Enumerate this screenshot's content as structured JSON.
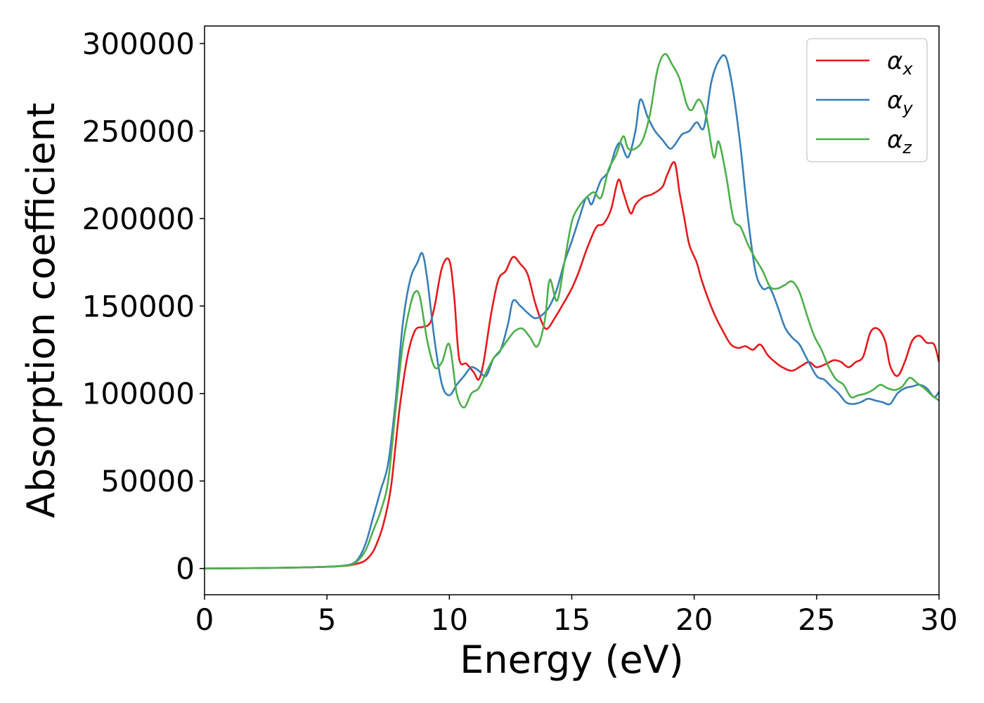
{
  "chart_data": {
    "type": "line",
    "title": "",
    "xlabel": "Energy (eV)",
    "ylabel": "Absorption coefficient",
    "xlim": [
      0,
      30
    ],
    "ylim": [
      -15000,
      310000
    ],
    "x_ticks": [
      0,
      5,
      10,
      15,
      20,
      25,
      30
    ],
    "x_tick_labels": [
      "0",
      "5",
      "10",
      "15",
      "20",
      "25",
      "30"
    ],
    "y_ticks": [
      0,
      50000,
      100000,
      150000,
      200000,
      250000,
      300000
    ],
    "y_tick_labels": [
      "0",
      "50000",
      "100000",
      "150000",
      "200000",
      "250000",
      "300000"
    ],
    "grid": false,
    "legend_position": "top-right",
    "series": [
      {
        "name": "α_x",
        "legend_base": "α",
        "legend_sub": "x",
        "color": "#e41a1c",
        "x": [
          0,
          2,
          4,
          5,
          5.5,
          6,
          6.5,
          6.8,
          7,
          7.3,
          7.6,
          7.8,
          8,
          8.3,
          8.6,
          8.9,
          9.2,
          9.4,
          9.7,
          10,
          10.2,
          10.4,
          10.7,
          11,
          11.2,
          11.4,
          11.7,
          12,
          12.3,
          12.6,
          12.9,
          13.2,
          13.5,
          13.8,
          14,
          14.3,
          14.6,
          15,
          15.3,
          15.6,
          16,
          16.3,
          16.6,
          16.9,
          17.1,
          17.4,
          17.6,
          17.9,
          18.3,
          18.7,
          18.9,
          19.2,
          19.4,
          19.6,
          19.8,
          20.1,
          20.3,
          20.6,
          20.9,
          21.2,
          21.5,
          21.8,
          22.1,
          22.4,
          22.7,
          23,
          23.3,
          23.6,
          24,
          24.4,
          24.7,
          25,
          25.4,
          25.7,
          26,
          26.3,
          26.6,
          26.9,
          27.2,
          27.5,
          27.8,
          28,
          28.3,
          28.6,
          28.9,
          29.2,
          29.5,
          29.8,
          30
        ],
        "y": [
          0,
          200,
          600,
          1000,
          1300,
          2000,
          4000,
          8000,
          13000,
          25000,
          45000,
          70000,
          95000,
          122000,
          136000,
          138000,
          140000,
          150000,
          172000,
          176000,
          155000,
          120000,
          117000,
          112000,
          108000,
          118000,
          145000,
          165000,
          170000,
          178000,
          174000,
          168000,
          152000,
          140000,
          137000,
          143000,
          150000,
          160000,
          170000,
          182000,
          195000,
          197000,
          205000,
          222000,
          215000,
          203000,
          208000,
          212000,
          214000,
          218000,
          225000,
          232000,
          215000,
          200000,
          185000,
          175000,
          165000,
          153000,
          143000,
          135000,
          128000,
          126000,
          127000,
          125000,
          128000,
          122000,
          118000,
          115000,
          113000,
          116000,
          118000,
          115000,
          117000,
          119000,
          118000,
          115000,
          118000,
          121000,
          135000,
          137000,
          130000,
          116000,
          110000,
          118000,
          130000,
          133000,
          129000,
          128000,
          118000
        ]
      },
      {
        "name": "α_y",
        "legend_base": "α",
        "legend_sub": "y",
        "color": "#377eb8",
        "x": [
          0,
          2,
          4,
          5,
          5.5,
          6,
          6.3,
          6.6,
          6.9,
          7.2,
          7.5,
          7.8,
          8.1,
          8.4,
          8.7,
          8.9,
          9.1,
          9.4,
          9.7,
          10,
          10.3,
          10.6,
          10.9,
          11.2,
          11.5,
          11.8,
          12.1,
          12.4,
          12.6,
          12.9,
          13.2,
          13.5,
          13.8,
          14.1,
          14.4,
          14.7,
          15,
          15.3,
          15.6,
          15.8,
          16,
          16.2,
          16.5,
          16.8,
          17,
          17.3,
          17.6,
          17.8,
          18.1,
          18.4,
          18.7,
          19,
          19.2,
          19.5,
          19.8,
          20.1,
          20.4,
          20.7,
          21,
          21.3,
          21.6,
          21.9,
          22.2,
          22.5,
          22.8,
          23.1,
          23.4,
          23.7,
          24,
          24.3,
          24.6,
          25,
          25.3,
          25.6,
          25.9,
          26.2,
          26.5,
          26.8,
          27.1,
          27.4,
          27.7,
          28,
          28.3,
          28.6,
          28.9,
          29.2,
          29.5,
          29.8,
          30
        ],
        "y": [
          0,
          200,
          600,
          1000,
          1400,
          2500,
          6000,
          15000,
          30000,
          45000,
          60000,
          95000,
          140000,
          165000,
          175000,
          180000,
          165000,
          130000,
          105000,
          99000,
          105000,
          110000,
          115000,
          113000,
          110000,
          120000,
          125000,
          140000,
          153000,
          150000,
          146000,
          143000,
          145000,
          150000,
          160000,
          175000,
          187000,
          200000,
          212000,
          208000,
          215000,
          222000,
          227000,
          240000,
          243000,
          235000,
          250000,
          268000,
          258000,
          250000,
          245000,
          240000,
          242000,
          248000,
          250000,
          255000,
          252000,
          278000,
          290000,
          292000,
          272000,
          240000,
          200000,
          170000,
          160000,
          160000,
          150000,
          138000,
          132000,
          128000,
          120000,
          110000,
          108000,
          104000,
          100000,
          95000,
          94000,
          95000,
          97000,
          96000,
          95000,
          94000,
          100000,
          103000,
          104000,
          105000,
          103000,
          98000,
          101000
        ]
      },
      {
        "name": "α_z",
        "legend_base": "α",
        "legend_sub": "z",
        "color": "#4daf4a",
        "x": [
          0,
          2,
          4,
          5,
          5.5,
          6,
          6.3,
          6.6,
          6.9,
          7.2,
          7.5,
          7.8,
          8.1,
          8.4,
          8.6,
          8.8,
          9.1,
          9.4,
          9.7,
          10,
          10.3,
          10.6,
          10.9,
          11.2,
          11.5,
          11.8,
          12.1,
          12.4,
          12.7,
          13,
          13.3,
          13.6,
          13.9,
          14.1,
          14.4,
          14.7,
          15,
          15.3,
          15.6,
          15.9,
          16.2,
          16.5,
          16.8,
          17.1,
          17.3,
          17.6,
          17.9,
          18.2,
          18.5,
          18.8,
          19.1,
          19.4,
          19.7,
          19.9,
          20.2,
          20.5,
          20.8,
          21,
          21.3,
          21.6,
          21.9,
          22.2,
          22.5,
          22.8,
          23.1,
          23.4,
          23.7,
          24,
          24.3,
          24.6,
          24.9,
          25.2,
          25.5,
          25.8,
          26.1,
          26.4,
          26.7,
          27,
          27.3,
          27.6,
          27.9,
          28.2,
          28.5,
          28.8,
          29.1,
          29.4,
          29.7,
          30
        ],
        "y": [
          0,
          200,
          600,
          1000,
          1300,
          2200,
          5000,
          11000,
          22000,
          33000,
          50000,
          90000,
          128000,
          150000,
          158000,
          155000,
          130000,
          115000,
          118000,
          128000,
          100000,
          92000,
          100000,
          103000,
          112000,
          120000,
          125000,
          131000,
          136000,
          137000,
          132000,
          127000,
          142000,
          165000,
          153000,
          175000,
          198000,
          207000,
          212000,
          215000,
          212000,
          228000,
          236000,
          247000,
          240000,
          240000,
          245000,
          260000,
          285000,
          294000,
          288000,
          280000,
          265000,
          262000,
          268000,
          258000,
          235000,
          244000,
          225000,
          200000,
          195000,
          185000,
          177000,
          170000,
          161000,
          160000,
          162000,
          164000,
          158000,
          145000,
          133000,
          125000,
          115000,
          108000,
          105000,
          98000,
          99000,
          100000,
          102000,
          105000,
          103000,
          102000,
          104000,
          109000,
          106000,
          103000,
          99000,
          96000
        ]
      }
    ]
  }
}
